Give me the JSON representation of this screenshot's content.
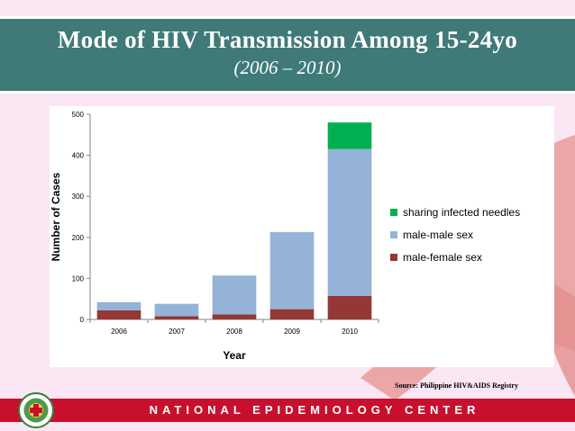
{
  "header": {
    "title": "Mode of HIV Transmission Among 15-24yo",
    "subtitle": "(2006 – 2010)"
  },
  "source": "Source: Philippine HIV&AIDS Registry",
  "footer": {
    "text": "NATIONAL EPIDEMIOLOGY CENTER",
    "seal_icon": "doh-seal-icon"
  },
  "colors": {
    "title_bar": "#3f7a78",
    "footer_bar": "#c8102e",
    "background": "#fbe6f4",
    "ribbon": "#e89a9a"
  },
  "chart_data": {
    "type": "bar",
    "stacked": true,
    "xlabel": "Year",
    "ylabel": "Number of Cases",
    "ylim": [
      0,
      500
    ],
    "yticks": [
      0,
      100,
      200,
      300,
      400,
      500
    ],
    "categories": [
      "2006",
      "2007",
      "2008",
      "2009",
      "2010"
    ],
    "series": [
      {
        "name": "male-female sex",
        "color": "#953735",
        "values": [
          22,
          8,
          12,
          25,
          57
        ]
      },
      {
        "name": "male-male sex",
        "color": "#95b3d7",
        "values": [
          20,
          30,
          95,
          188,
          358
        ]
      },
      {
        "name": "sharing infected needles",
        "color": "#00b050",
        "values": [
          0,
          0,
          0,
          0,
          65
        ]
      }
    ],
    "legend_position": "right",
    "grid": false
  }
}
